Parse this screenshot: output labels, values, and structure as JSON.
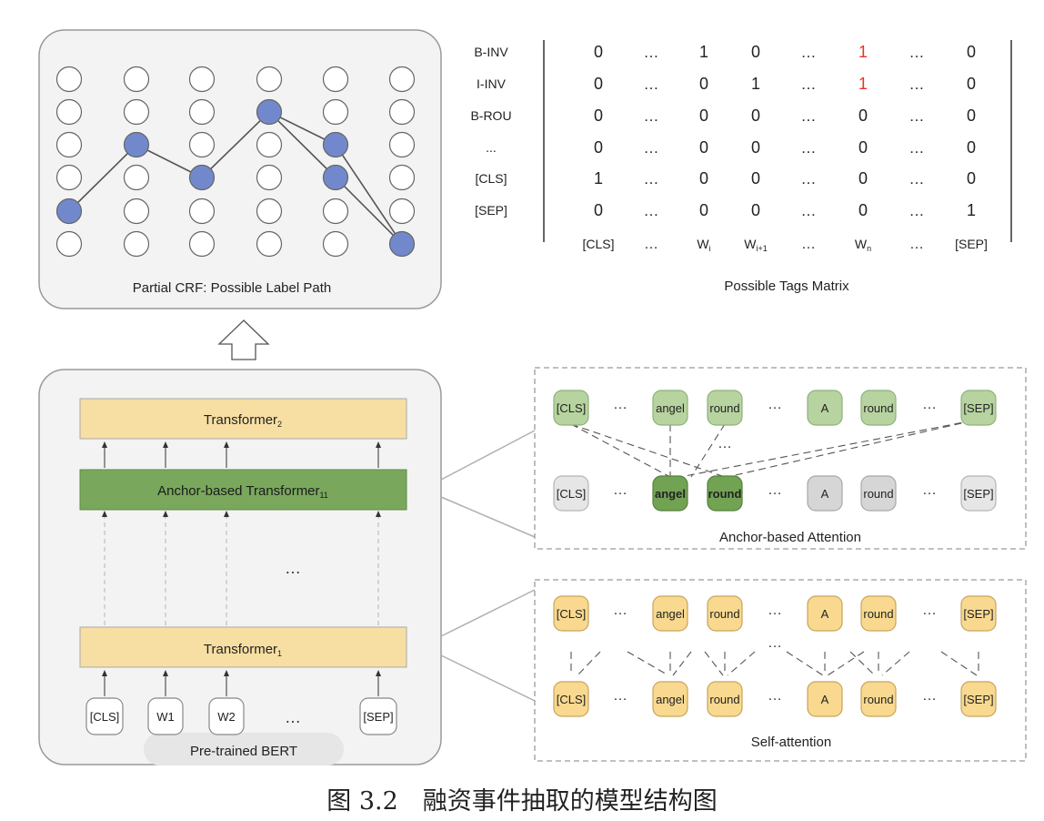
{
  "crf_panel": {
    "label": "Partial CRF: Possible Label Path",
    "path": [
      {
        "col": 0,
        "row": 4
      },
      {
        "col": 1,
        "row": 2
      },
      {
        "col": 2,
        "row": 3
      },
      {
        "col": 3,
        "row": 1
      },
      {
        "col": 4,
        "row": 2
      },
      {
        "col": 4,
        "row": 3
      },
      {
        "col": 5,
        "row": 5
      }
    ],
    "edges": [
      [
        0,
        1
      ],
      [
        1,
        2
      ],
      [
        2,
        3
      ],
      [
        3,
        4
      ],
      [
        3,
        5
      ],
      [
        4,
        6
      ],
      [
        5,
        6
      ]
    ]
  },
  "tags_matrix": {
    "label": "Possible Tags Matrix",
    "row_labels": [
      "B-INV",
      "I-INV",
      "B-ROU",
      "...",
      "[CLS]",
      "[SEP]"
    ],
    "rows": [
      [
        "0",
        "…",
        "1",
        "0",
        "…",
        "1",
        "…",
        "0"
      ],
      [
        "0",
        "…",
        "0",
        "1",
        "…",
        "1",
        "…",
        "0"
      ],
      [
        "0",
        "…",
        "0",
        "0",
        "…",
        "0",
        "…",
        "0"
      ],
      [
        "0",
        "…",
        "0",
        "0",
        "…",
        "0",
        "…",
        "0"
      ],
      [
        "1",
        "…",
        "0",
        "0",
        "…",
        "0",
        "…",
        "0"
      ],
      [
        "0",
        "…",
        "0",
        "0",
        "…",
        "0",
        "…",
        "1"
      ]
    ],
    "highlight_cells": [
      [
        0,
        5
      ],
      [
        1,
        5
      ]
    ],
    "highlight_color": "#e8332a",
    "col_labels": [
      {
        "main": "[CLS]",
        "sub": ""
      },
      {
        "main": "…",
        "sub": ""
      },
      {
        "main": "W",
        "sub": "i"
      },
      {
        "main": "W",
        "sub": "i+1"
      },
      {
        "main": "…",
        "sub": ""
      },
      {
        "main": "W",
        "sub": "n"
      },
      {
        "main": "…",
        "sub": ""
      },
      {
        "main": "[SEP]",
        "sub": ""
      }
    ]
  },
  "bert_panel": {
    "label": "Pre-trained BERT",
    "layers": [
      {
        "main": "Transformer",
        "sub": "2",
        "color": "#f7dfa3"
      },
      {
        "main": "Anchor-based Transformer",
        "sub": "11",
        "color": "#79a85c"
      },
      {
        "main": "Transformer",
        "sub": "1",
        "color": "#f7dfa3"
      }
    ],
    "middle_ellipsis": "…",
    "inputs": [
      "[CLS]",
      "W1",
      "W2",
      "…",
      "[SEP]"
    ]
  },
  "anchor_panel": {
    "label": "Anchor-based Attention",
    "top_tokens": [
      "[CLS]",
      "…",
      "angel",
      "round",
      "…",
      "A",
      "round",
      "…",
      "[SEP]"
    ],
    "bottom_tokens": [
      "[CLS]",
      "…",
      "angel",
      "round",
      "…",
      "A",
      "round",
      "…",
      "[SEP]"
    ],
    "middle_ellipsis": "…",
    "colors": {
      "light_green": "#b7d3a0",
      "dark_green": "#72a353",
      "gray": "#d6d6d6",
      "light_gray": "#e6e6e6"
    }
  },
  "self_attention_panel": {
    "label": "Self-attention",
    "top_tokens": [
      "[CLS]",
      "…",
      "angel",
      "round",
      "…",
      "A",
      "round",
      "…",
      "[SEP]"
    ],
    "bottom_tokens": [
      "[CLS]",
      "…",
      "angel",
      "round",
      "…",
      "A",
      "round",
      "…",
      "[SEP]"
    ],
    "middle_ellipsis": "…",
    "colors": {
      "yellow": "#f8d98f"
    }
  },
  "figure_caption": "图 3.2　融资事件抽取的模型结构图",
  "colors": {
    "node_blue": "#7189cc",
    "node_outline": "#6a6a6a",
    "panel_fill": "#f3f3f3"
  }
}
